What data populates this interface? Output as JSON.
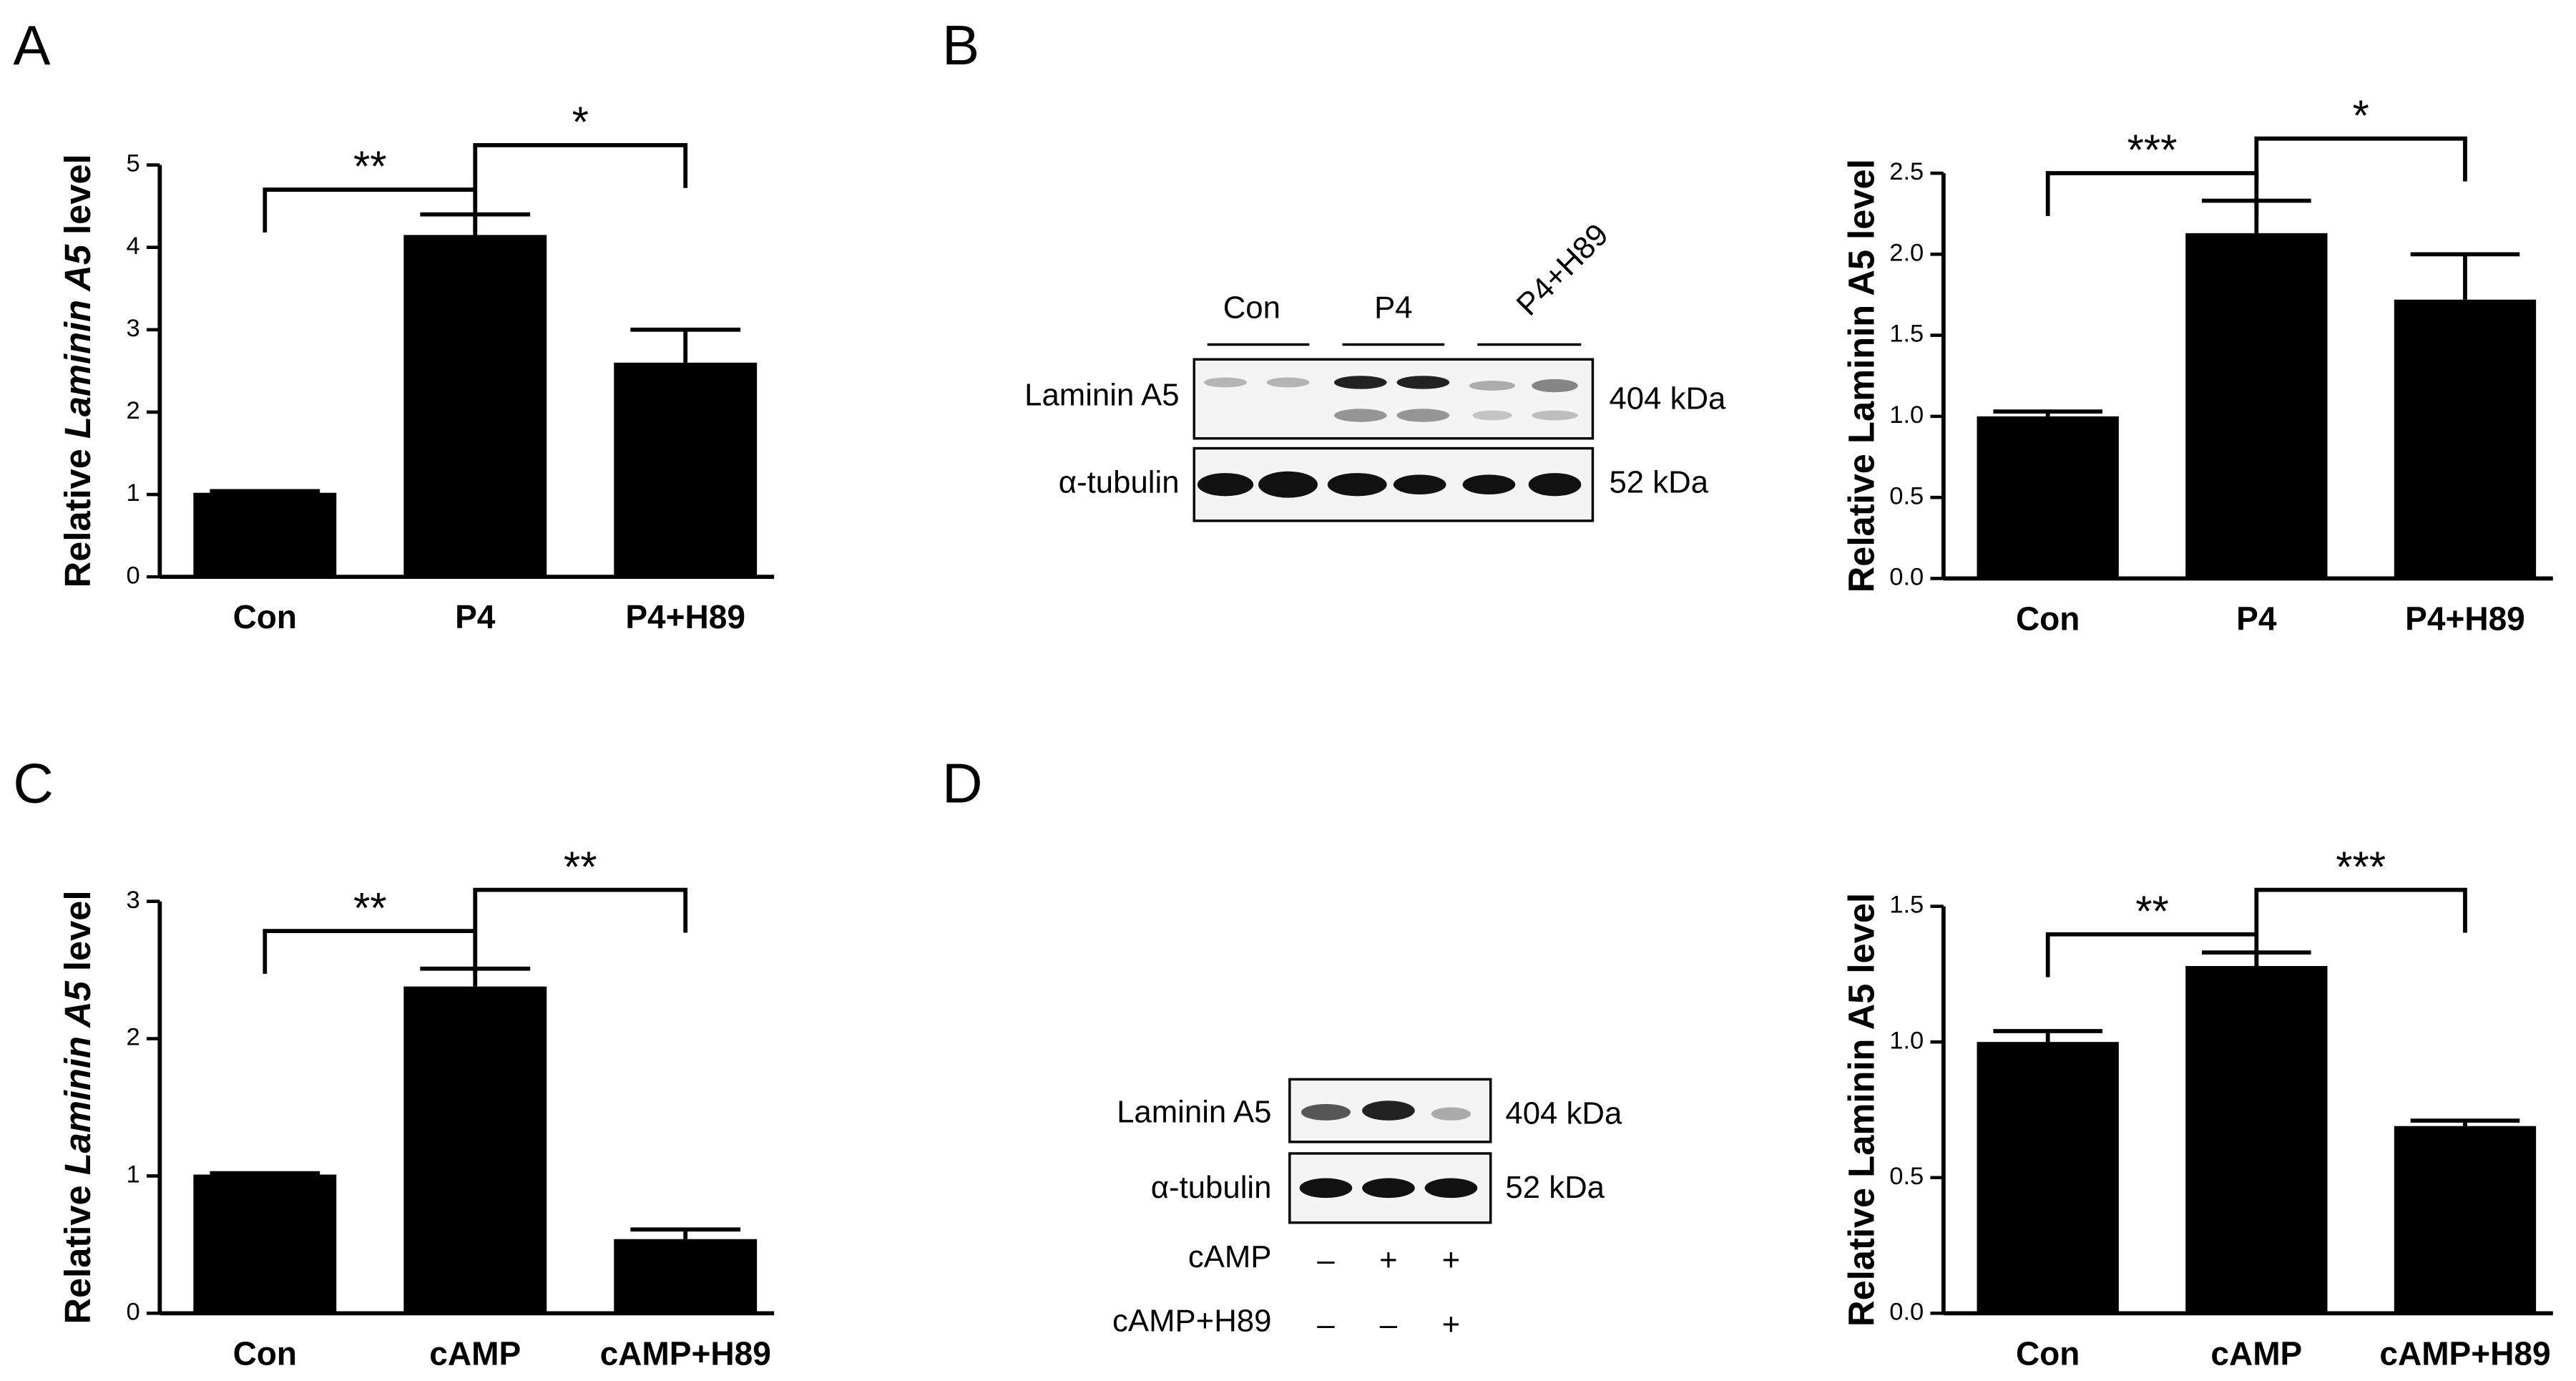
{
  "panels": [
    "A",
    "B",
    "C",
    "D"
  ],
  "chart_data": [
    {
      "type": "bar",
      "ylabel": [
        "Relative",
        "Laminin A5",
        "level"
      ],
      "categories": [
        "Con",
        "P4",
        "P4+H89"
      ],
      "values": [
        1.02,
        4.15,
        2.6
      ],
      "errors": [
        0.02,
        0.25,
        0.4
      ],
      "color": "#000000",
      "ylim": [
        0,
        5
      ],
      "yticks": [
        0,
        1,
        2,
        3,
        4,
        5
      ],
      "annotations": [
        "**",
        "*"
      ]
    },
    {
      "type": "bar",
      "ylabel": "Relative Laminin A5 level",
      "categories": [
        "Con",
        "P4",
        "P4+H89"
      ],
      "values": [
        1.0,
        2.13,
        1.72
      ],
      "errors": [
        0.03,
        0.2,
        0.28
      ],
      "color": "#000000",
      "ylim": [
        0,
        2.5
      ],
      "yticks": [
        {
          "value": 0,
          "label": "0.0"
        },
        0.5,
        {
          "value": 1,
          "label": "1.0"
        },
        1.5,
        {
          "value": 2,
          "label": "2.0"
        },
        2.5
      ],
      "annotations": [
        "***",
        "*"
      ]
    },
    {
      "type": "bar",
      "ylabel": [
        "Relative",
        "Laminin A5",
        "level"
      ],
      "categories": [
        "Con",
        "cAMP",
        "cAMP+H89"
      ],
      "values": [
        1.01,
        2.38,
        0.54
      ],
      "errors": [
        0.01,
        0.13,
        0.07
      ],
      "color": "#000000",
      "ylim": [
        0,
        3
      ],
      "yticks": [
        0,
        1,
        2,
        3
      ],
      "annotations": [
        "**",
        "**"
      ]
    },
    {
      "type": "bar",
      "ylabel": "Relative Laminin A5 level",
      "categories": [
        "Con",
        "cAMP",
        "cAMP+H89"
      ],
      "values": [
        1.0,
        1.28,
        0.69
      ],
      "errors": [
        0.04,
        0.05,
        0.02
      ],
      "color": "#000000",
      "ylim": [
        0,
        1.5
      ],
      "yticks": [
        {
          "value": 0,
          "label": "0.0"
        },
        0.5,
        {
          "value": 1,
          "label": "1.0"
        },
        1.5
      ],
      "annotations": [
        "**",
        "***"
      ]
    }
  ],
  "blots": [
    {
      "groups": [
        "Con",
        "P4",
        "P4+H89"
      ],
      "rows": [
        "Laminin A5",
        "α-tubulin"
      ],
      "sizes": [
        "404 kDa",
        "52 kDa"
      ]
    },
    {
      "rows": [
        "Laminin A5",
        "α-tubulin"
      ],
      "sizes": [
        "404 kDa",
        "52 kDa"
      ],
      "treatments": [
        {
          "name": "cAMP",
          "signs": [
            "–",
            "+",
            "+"
          ]
        },
        {
          "name": "cAMP+H89",
          "signs": [
            "–",
            "–",
            "+"
          ]
        }
      ]
    }
  ]
}
